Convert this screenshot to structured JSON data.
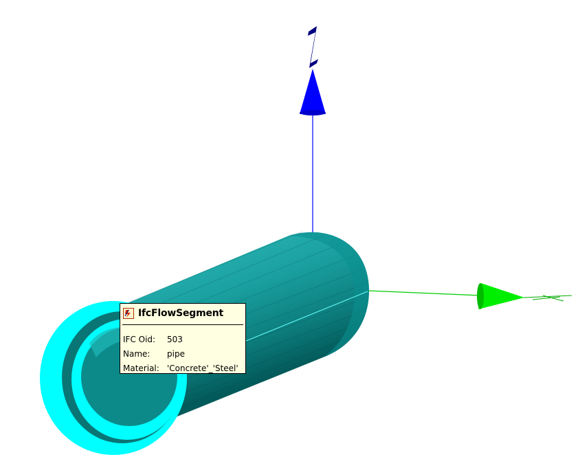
{
  "viewer": {
    "background": "#ffffff",
    "axes": {
      "z_color": "#0000ff",
      "y_color": "#00dd00",
      "z_label_color": "#000080"
    },
    "pipe": {
      "outer_color": "#009999",
      "end_face_color": "#00ffff",
      "edge_line_color": "#66ffff"
    }
  },
  "tooltip": {
    "icon": "ifc-entity-icon",
    "title": "IfcFlowSegment",
    "rows": [
      {
        "key": "IFC Oid:",
        "value": "503"
      },
      {
        "key": "Name:",
        "value": "pipe"
      },
      {
        "key": "Material:",
        "value": "'Concrete'_'Steel'"
      }
    ]
  }
}
